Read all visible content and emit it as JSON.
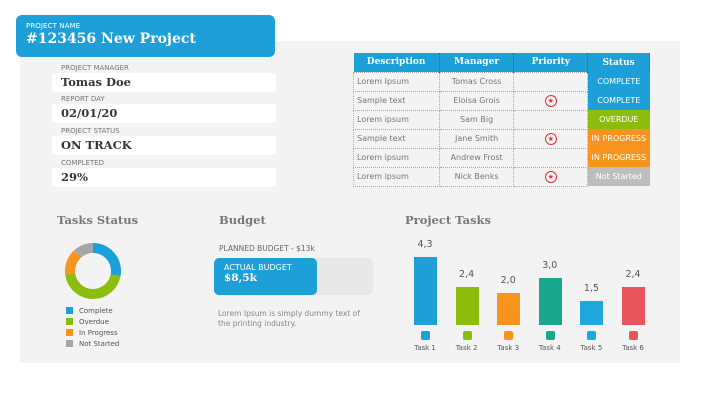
{
  "header": {
    "label": "PROJECT NAME",
    "title": "#123456 New Project",
    "color": "#1d9fd8"
  },
  "info": [
    {
      "label": "PROJECT MANAGER",
      "value": "Tomas Doe"
    },
    {
      "label": "REPORT DAY",
      "value": "02/01/20"
    },
    {
      "label": "PROJECT STATUS",
      "value": "ON TRACK"
    },
    {
      "label": "COMPLETED",
      "value": "29%"
    }
  ],
  "table": {
    "columns": [
      "Description",
      "Manager",
      "Priority",
      "Status"
    ],
    "rows": [
      {
        "description": "Lorem Ipsum",
        "manager": "Tomas  Cross",
        "priority": false,
        "status": "COMPLETE",
        "color": "#1d9fd8"
      },
      {
        "description": "Sample text",
        "manager": "Eloisa Grois",
        "priority": true,
        "status": "COMPLETE",
        "color": "#1d9fd8"
      },
      {
        "description": "Lorem ipsum",
        "manager": "Sam Big",
        "priority": false,
        "status": "OVERDUE",
        "color": "#8cbd0e"
      },
      {
        "description": "Sample text",
        "manager": "Jane Smith",
        "priority": true,
        "status": "IN PROGRESS",
        "color": "#f7941d"
      },
      {
        "description": "Lorem ipsum",
        "manager": "Andrew Frost",
        "priority": false,
        "status": "IN PROGRESS",
        "color": "#f7941d"
      },
      {
        "description": "Lorem ipsum",
        "manager": "Nick Benks",
        "priority": true,
        "status": "Not Started",
        "color": "#bdbdbd"
      }
    ]
  },
  "tasks_status": {
    "title": "Tasks Status",
    "chart_data": {
      "type": "pie",
      "donut": true,
      "categories": [
        "Complete",
        "Overdue",
        "In Progress",
        "Not Started"
      ],
      "values": [
        28,
        45,
        15,
        12
      ],
      "colors": [
        "#1d9fd8",
        "#8cbd0e",
        "#f7941d",
        "#a6a6a6"
      ]
    }
  },
  "budget": {
    "title": "Budget",
    "planned_label": "PLANNED BUDGET -  $13k",
    "actual_label": "ACTUAL BUDGET",
    "actual_value": "$8,5k",
    "actual_fraction": 0.65,
    "description": "Lorem Ipsum is simply dummy text of the printing industry."
  },
  "project_tasks": {
    "title": "Project Tasks",
    "chart_data": {
      "type": "bar",
      "categories": [
        "Task 1",
        "Task 2",
        "Task 3",
        "Task 4",
        "Task 5",
        "Task 6"
      ],
      "values": [
        4.3,
        2.4,
        2.0,
        3.0,
        1.5,
        2.4
      ],
      "labels": [
        "4,3",
        "2,4",
        "2,0",
        "3,0",
        "1,5",
        "2,4"
      ],
      "colors": [
        "#1d9fd8",
        "#8cbd0e",
        "#f7941d",
        "#17a78f",
        "#1fa8e0",
        "#e8555a"
      ]
    }
  }
}
